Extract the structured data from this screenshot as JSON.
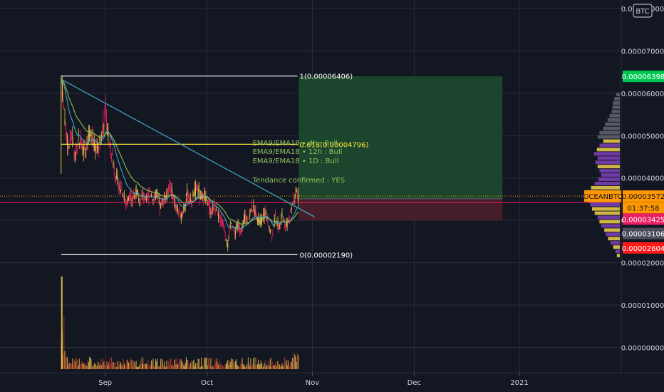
{
  "chart_data": {
    "type": "candlestick",
    "symbol": "OCEANBTC",
    "currency": "BTC",
    "price_axis": {
      "ticks": [
        "0.00008000",
        "0.00007000",
        "0.00006000",
        "0.00005000",
        "0.00004000",
        "0.00003000",
        "0.00002000",
        "0.00001000",
        "0.00000000"
      ],
      "tick_values": [
        8e-05,
        7e-05,
        6e-05,
        5e-05,
        4e-05,
        3e-05,
        2e-05,
        1e-05,
        0.0
      ],
      "range": [
        -5.96e-06,
        8.2e-05
      ]
    },
    "time_axis": {
      "ticks": [
        "Sep",
        "Oct",
        "Nov",
        "Dec",
        "2021"
      ],
      "tick_dates": [
        "2020-09-01",
        "2020-10-01",
        "2020-11-01",
        "2020-12-01",
        "2021-01-01"
      ],
      "range": [
        "2020-08-01",
        "2021-01-31"
      ]
    },
    "fibonacci": {
      "levels": [
        {
          "label": "1(0.00006406)",
          "ratio": 1,
          "price": 6.406e-05,
          "color": "#ffffff"
        },
        {
          "label": "0.618(0.00004796)",
          "ratio": 0.618,
          "price": 4.796e-05,
          "color": "#ffeb3b"
        },
        {
          "label": "0(0.00002190)",
          "ratio": 0,
          "price": 2.19e-05,
          "color": "#ffffff"
        }
      ],
      "start": "2020-08-19",
      "end": "2020-10-27"
    },
    "trendline": {
      "start": {
        "time": "2020-08-19",
        "price": 6.33e-05
      },
      "end": {
        "time": "2020-10-28",
        "price": 3.05e-05
      },
      "color": "#3fa9c6"
    },
    "position": {
      "entry": 3.51e-05,
      "target": 6.398e-05,
      "stop": 3e-05,
      "start": "2020-10-28",
      "end": "2020-12-27",
      "profit_color": "#1d4d2e",
      "loss_color": "#4d1f2a"
    },
    "horizontal_line": {
      "price": 3.42e-05,
      "color": "#e91e63"
    },
    "current_price": 3.572e-05,
    "price_labels": [
      {
        "text": "0.00006398",
        "bg": "#00c853",
        "fg": "#ffffff",
        "price": 6.398e-05
      },
      {
        "text": "0.00003572",
        "bg": "#ff9800",
        "fg": "#131722",
        "price": 3.572e-05
      },
      {
        "text": "01:37:58",
        "bg": "#ff9800",
        "fg": "#131722",
        "price": 3.3e-05
      },
      {
        "text": "0.00003425",
        "bg": "#e91e63",
        "fg": "#ffffff",
        "price": 3.03e-05
      },
      {
        "text": "0.00003106",
        "bg": "#4a4e5a",
        "fg": "#ffffff",
        "price": 2.69e-05
      },
      {
        "text": "0.00002604",
        "bg": "#ff1a1a",
        "fg": "#ffffff",
        "price": 2.35e-05
      }
    ],
    "status_lines": [
      "EMA9/EMA18    • 4h : Bull",
      "EMA9/EMA18    • 12h : Bull",
      "EMA9/EMA18    • 1D : Bull",
      "Tendance confirmed : YES"
    ],
    "price_path": [
      [
        "2020-08-19",
        6.3e-05
      ],
      [
        "2020-08-20",
        5.4e-05
      ],
      [
        "2020-08-21",
        4.7e-05
      ],
      [
        "2020-08-22",
        5e-05
      ],
      [
        "2020-08-23",
        4.5e-05
      ],
      [
        "2020-08-24",
        5e-05
      ],
      [
        "2020-08-25",
        4.8e-05
      ],
      [
        "2020-08-26",
        4.6e-05
      ],
      [
        "2020-08-27",
        4.9e-05
      ],
      [
        "2020-08-28",
        5e-05
      ],
      [
        "2020-08-29",
        4.7e-05
      ],
      [
        "2020-08-30",
        4.8e-05
      ],
      [
        "2020-08-31",
        5.1e-05
      ],
      [
        "2020-09-01",
        5.6e-05
      ],
      [
        "2020-09-02",
        4.8e-05
      ],
      [
        "2020-09-03",
        4.5e-05
      ],
      [
        "2020-09-04",
        4e-05
      ],
      [
        "2020-09-05",
        3.8e-05
      ],
      [
        "2020-09-06",
        3.7e-05
      ],
      [
        "2020-09-07",
        3.4e-05
      ],
      [
        "2020-09-08",
        3.6e-05
      ],
      [
        "2020-09-09",
        3.5e-05
      ],
      [
        "2020-09-10",
        3.7e-05
      ],
      [
        "2020-09-11",
        3.4e-05
      ],
      [
        "2020-09-12",
        3.6e-05
      ],
      [
        "2020-09-13",
        3.4e-05
      ],
      [
        "2020-09-14",
        3.7e-05
      ],
      [
        "2020-09-15",
        3.5e-05
      ],
      [
        "2020-09-16",
        3.6e-05
      ],
      [
        "2020-09-17",
        3.3e-05
      ],
      [
        "2020-09-18",
        3.5e-05
      ],
      [
        "2020-09-19",
        3.6e-05
      ],
      [
        "2020-09-20",
        3.8e-05
      ],
      [
        "2020-09-21",
        3.5e-05
      ],
      [
        "2020-09-22",
        3.3e-05
      ],
      [
        "2020-09-23",
        3.1e-05
      ],
      [
        "2020-09-24",
        3.3e-05
      ],
      [
        "2020-09-25",
        3.6e-05
      ],
      [
        "2020-09-26",
        3.4e-05
      ],
      [
        "2020-09-27",
        3.6e-05
      ],
      [
        "2020-09-28",
        3.8e-05
      ],
      [
        "2020-09-29",
        3.5e-05
      ],
      [
        "2020-09-30",
        3.6e-05
      ],
      [
        "2020-10-01",
        3.4e-05
      ],
      [
        "2020-10-02",
        3.2e-05
      ],
      [
        "2020-10-03",
        3.3e-05
      ],
      [
        "2020-10-04",
        3.1e-05
      ],
      [
        "2020-10-05",
        3e-05
      ],
      [
        "2020-10-06",
        2.8e-05
      ],
      [
        "2020-10-07",
        2.4e-05
      ],
      [
        "2020-10-08",
        3e-05
      ],
      [
        "2020-10-09",
        2.7e-05
      ],
      [
        "2020-10-10",
        2.9e-05
      ],
      [
        "2020-10-11",
        2.7e-05
      ],
      [
        "2020-10-12",
        3.1e-05
      ],
      [
        "2020-10-13",
        3e-05
      ],
      [
        "2020-10-14",
        3.3e-05
      ],
      [
        "2020-10-15",
        3.2e-05
      ],
      [
        "2020-10-16",
        3e-05
      ],
      [
        "2020-10-17",
        3e-05
      ],
      [
        "2020-10-18",
        3.2e-05
      ],
      [
        "2020-10-19",
        2.9e-05
      ],
      [
        "2020-10-20",
        2.6e-05
      ],
      [
        "2020-10-21",
        3.1e-05
      ],
      [
        "2020-10-22",
        2.8e-05
      ],
      [
        "2020-10-23",
        3.1e-05
      ],
      [
        "2020-10-24",
        2.9e-05
      ],
      [
        "2020-10-25",
        3e-05
      ],
      [
        "2020-10-26",
        3.4e-05
      ],
      [
        "2020-10-27",
        3.6e-05
      ],
      [
        "2020-10-28",
        3.57e-05
      ]
    ],
    "volume_profile": {
      "bins": [
        {
          "price": 5.97e-05,
          "size": 0.1,
          "color": "#5d606b"
        },
        {
          "price": 5.87e-05,
          "size": 0.15,
          "color": "#5d606b"
        },
        {
          "price": 5.77e-05,
          "size": 0.18,
          "color": "#5d606b"
        },
        {
          "price": 5.67e-05,
          "size": 0.2,
          "color": "#5d606b"
        },
        {
          "price": 5.57e-05,
          "size": 0.22,
          "color": "#5d606b"
        },
        {
          "price": 5.47e-05,
          "size": 0.28,
          "color": "#5d606b"
        },
        {
          "price": 5.37e-05,
          "size": 0.33,
          "color": "#5d606b"
        },
        {
          "price": 5.27e-05,
          "size": 0.4,
          "color": "#5d606b"
        },
        {
          "price": 5.17e-05,
          "size": 0.45,
          "color": "#5d606b"
        },
        {
          "price": 5.07e-05,
          "size": 0.55,
          "color": "#5d606b"
        },
        {
          "price": 4.97e-05,
          "size": 0.6,
          "color": "#5d606b"
        },
        {
          "price": 4.87e-05,
          "size": 0.45,
          "color": "#e6c84a"
        },
        {
          "price": 4.77e-05,
          "size": 0.55,
          "color": "#7b3fb5"
        },
        {
          "price": 4.67e-05,
          "size": 0.62,
          "color": "#e6c84a"
        },
        {
          "price": 4.57e-05,
          "size": 0.7,
          "color": "#7b3fb5"
        },
        {
          "price": 4.47e-05,
          "size": 0.6,
          "color": "#7b3fb5"
        },
        {
          "price": 4.37e-05,
          "size": 0.66,
          "color": "#7b3fb5"
        },
        {
          "price": 4.27e-05,
          "size": 0.6,
          "color": "#e6c84a"
        },
        {
          "price": 4.17e-05,
          "size": 0.55,
          "color": "#7b3fb5"
        },
        {
          "price": 4.07e-05,
          "size": 0.5,
          "color": "#7b3fb5"
        },
        {
          "price": 3.97e-05,
          "size": 0.58,
          "color": "#7b3fb5"
        },
        {
          "price": 3.87e-05,
          "size": 0.68,
          "color": "#7b3fb5"
        },
        {
          "price": 3.77e-05,
          "size": 0.78,
          "color": "#e6c84a"
        },
        {
          "price": 3.67e-05,
          "size": 0.95,
          "color": "#e6c84a"
        },
        {
          "price": 3.57e-05,
          "size": 1.0,
          "color": "#7b3fb5"
        },
        {
          "price": 3.47e-05,
          "size": 0.85,
          "color": "#e6c84a"
        },
        {
          "price": 3.37e-05,
          "size": 0.8,
          "color": "#7b3fb5"
        },
        {
          "price": 3.27e-05,
          "size": 0.75,
          "color": "#e6c84a"
        },
        {
          "price": 3.17e-05,
          "size": 0.68,
          "color": "#e6c84a"
        },
        {
          "price": 3.07e-05,
          "size": 0.6,
          "color": "#7b3fb5"
        },
        {
          "price": 2.97e-05,
          "size": 0.55,
          "color": "#e6c84a"
        },
        {
          "price": 2.87e-05,
          "size": 0.5,
          "color": "#7b3fb5"
        },
        {
          "price": 2.77e-05,
          "size": 0.42,
          "color": "#e6c84a"
        },
        {
          "price": 2.67e-05,
          "size": 0.38,
          "color": "#7b3fb5"
        },
        {
          "price": 2.57e-05,
          "size": 0.32,
          "color": "#e6c84a"
        },
        {
          "price": 2.47e-05,
          "size": 0.25,
          "color": "#7b3fb5"
        },
        {
          "price": 2.37e-05,
          "size": 0.18,
          "color": "#e6c84a"
        },
        {
          "price": 2.27e-05,
          "size": 0.12,
          "color": "#7b3fb5"
        },
        {
          "price": 2.17e-05,
          "size": 0.08,
          "color": "#e6c84a"
        }
      ]
    },
    "colors": {
      "background": "#131722",
      "grid": "#2a2e39",
      "candle_up": "#e6c84a",
      "candle_down": "#e91e63",
      "ema_fast": "#3fa9c6",
      "ema_slow": "#8fc45a",
      "volume": "#c0392b"
    }
  }
}
